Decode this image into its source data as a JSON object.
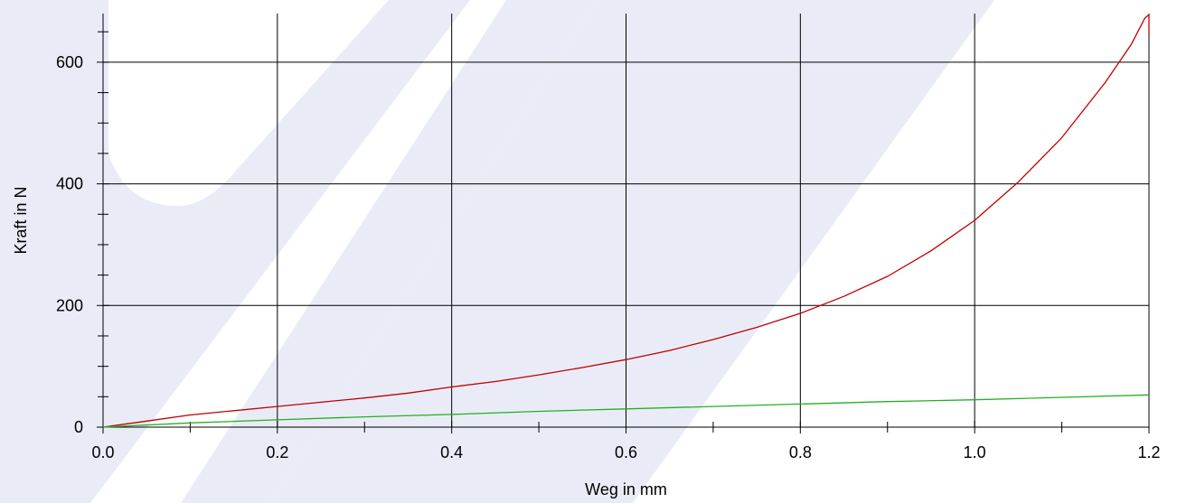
{
  "chart_data": {
    "type": "line",
    "xlabel": "Weg in mm",
    "ylabel": "Kraft in N",
    "xlim": [
      0,
      1.2
    ],
    "ylim": [
      0,
      680
    ],
    "x_ticks": [
      0.0,
      0.2,
      0.4,
      0.6,
      0.8,
      1.0,
      1.2
    ],
    "x_tick_labels": [
      "0.0",
      "0.2",
      "0.4",
      "0.6",
      "0.8",
      "1.0",
      "1.2"
    ],
    "y_ticks": [
      0,
      200,
      400,
      600
    ],
    "y_tick_labels": [
      "0",
      "200",
      "400",
      "600"
    ],
    "grid": true,
    "series": [
      {
        "color": "#c00000",
        "x": [
          0.0,
          0.05,
          0.1,
          0.15,
          0.2,
          0.25,
          0.3,
          0.35,
          0.4,
          0.45,
          0.5,
          0.55,
          0.6,
          0.65,
          0.7,
          0.75,
          0.8,
          0.85,
          0.9,
          0.95,
          1.0,
          1.05,
          1.1,
          1.15,
          1.18,
          1.195,
          1.2,
          1.2
        ],
        "values": [
          0,
          10,
          20,
          27,
          34,
          41,
          48,
          56,
          66,
          75,
          86,
          98,
          111,
          126,
          144,
          164,
          187,
          215,
          248,
          290,
          340,
          403,
          476,
          567,
          630,
          672,
          678,
          645
        ]
      },
      {
        "color": "#22b022",
        "x": [
          0.0,
          0.1,
          0.2,
          0.3,
          0.4,
          0.5,
          0.6,
          0.7,
          0.8,
          0.9,
          1.0,
          1.1,
          1.2
        ],
        "values": [
          0,
          7,
          12,
          17,
          21,
          26,
          30,
          34,
          38,
          42,
          45,
          49,
          53
        ]
      }
    ]
  }
}
